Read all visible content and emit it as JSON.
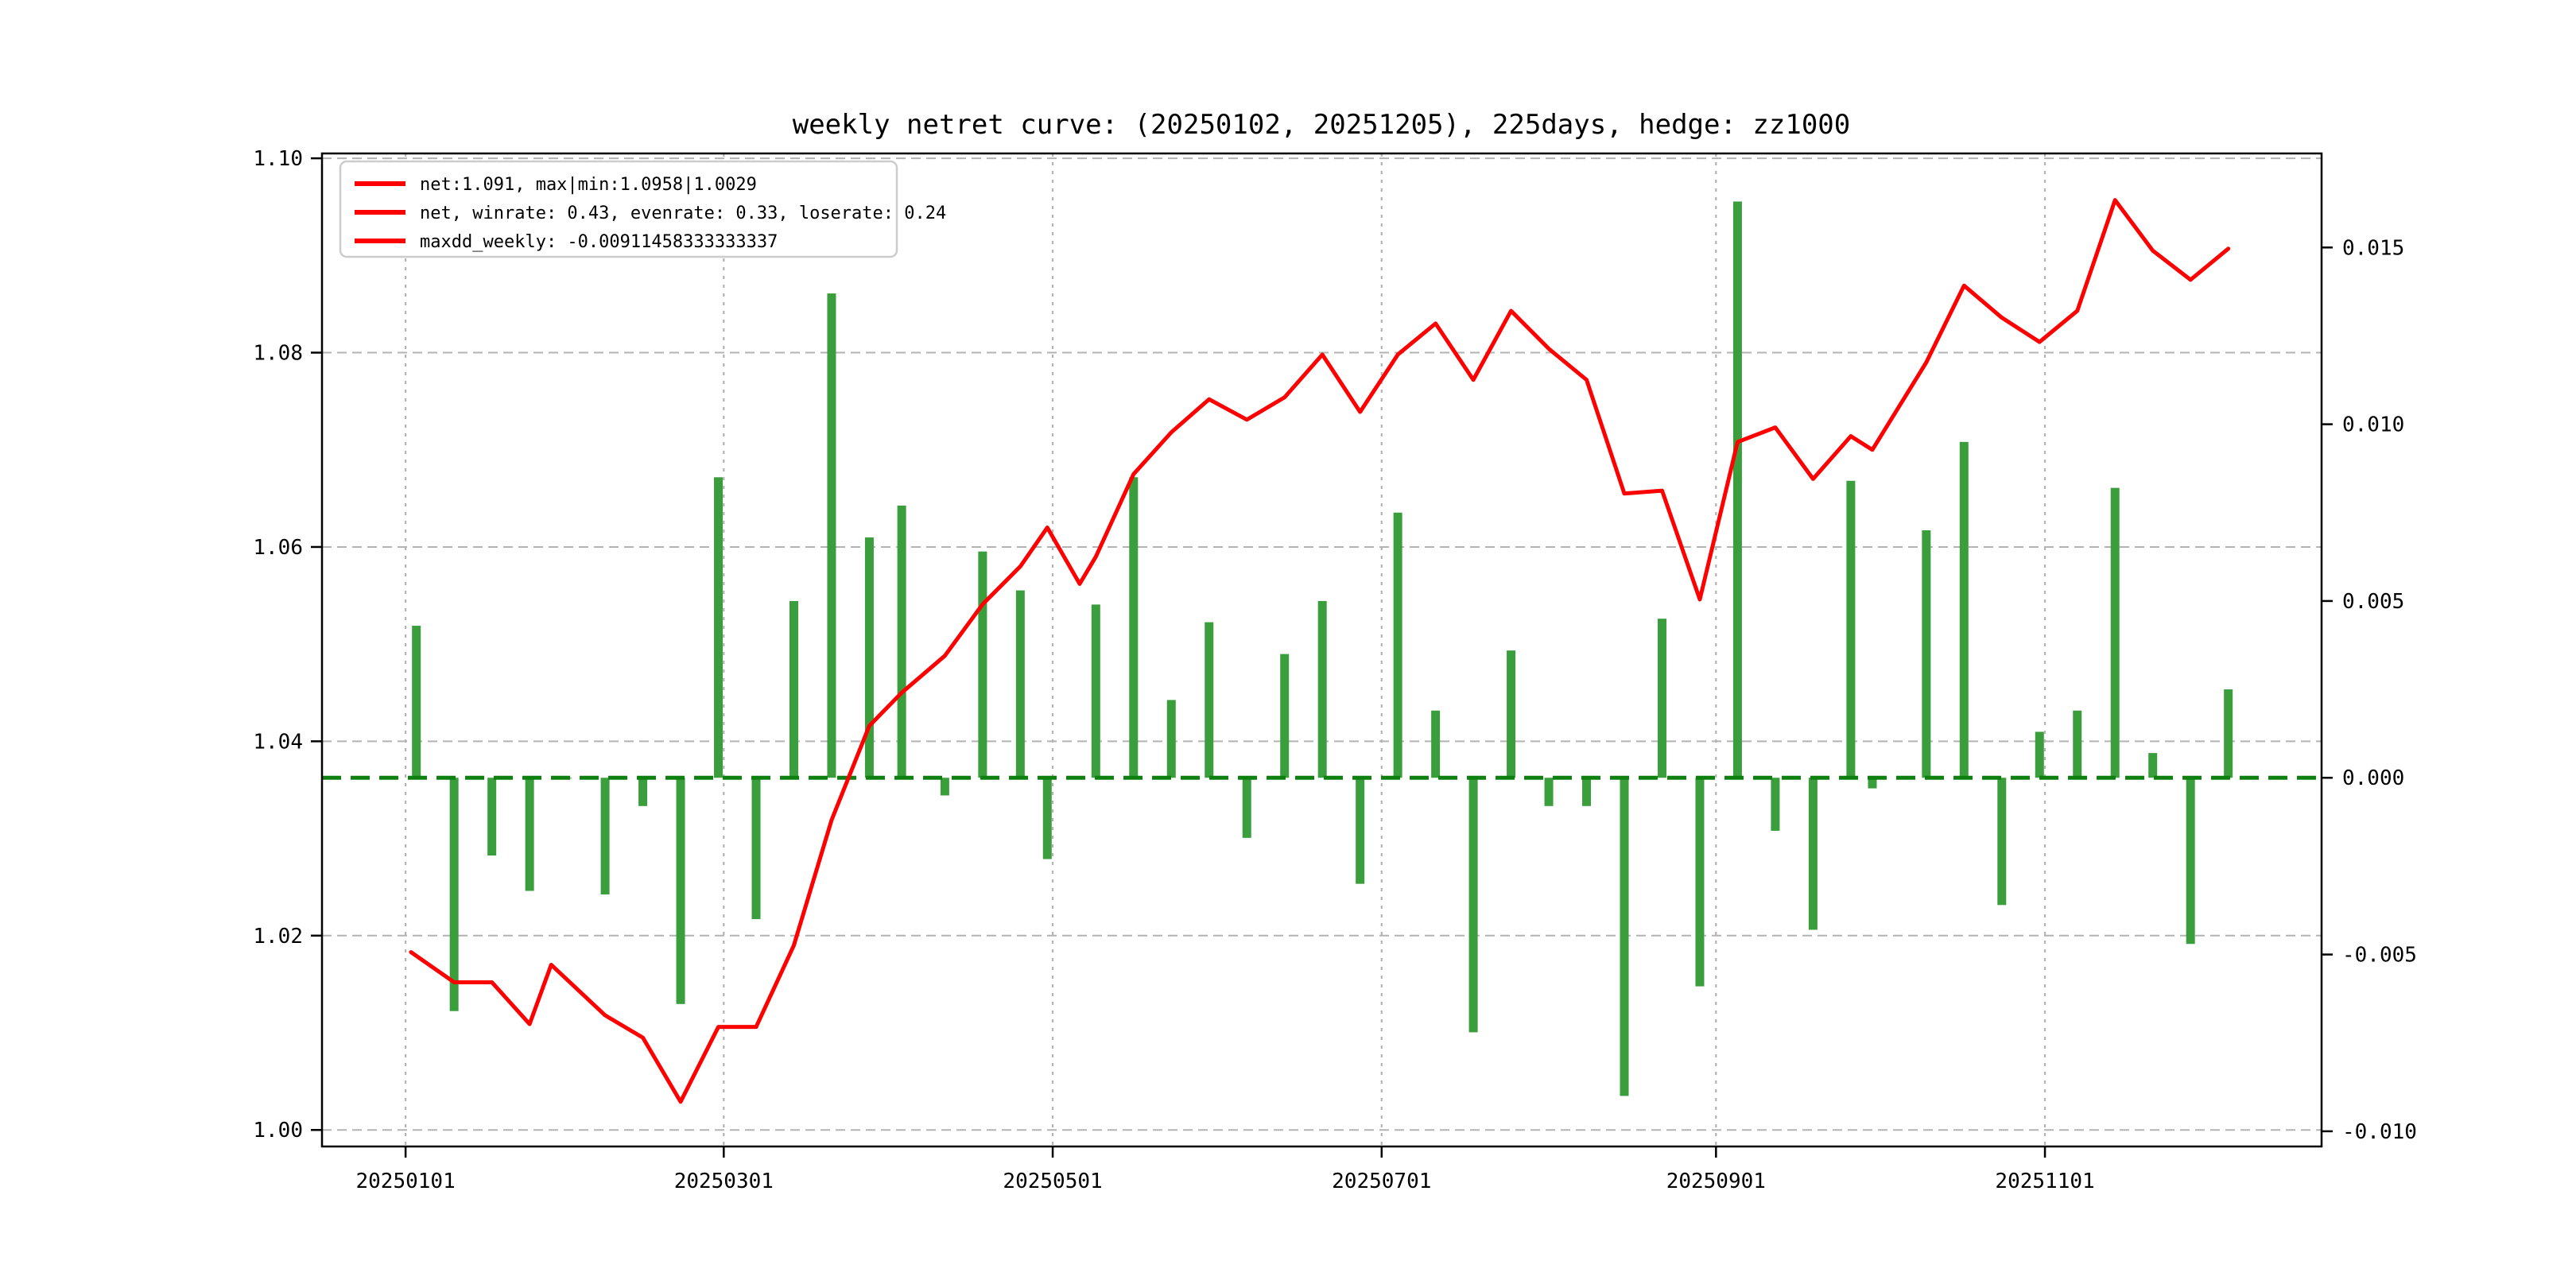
{
  "figure": {
    "title": "weekly netret curve: (20250102, 20251205), 225days, hedge: zz1000",
    "background": "#ffffff"
  },
  "legend": {
    "position": "upper-left",
    "items": [
      {
        "label": "net:1.091, max|min:1.0958|1.0029",
        "color": "#ff0000"
      },
      {
        "label": "net, winrate: 0.43, evenrate: 0.33, loserate: 0.24",
        "color": "#ff0000"
      },
      {
        "label": "maxdd_weekly: -0.00911458333333337",
        "color": "#ff0000"
      }
    ]
  },
  "axes": {
    "x": {
      "tick_labels": [
        "20250101",
        "20250301",
        "20250501",
        "20250701",
        "20250901",
        "20251101"
      ],
      "tick_days": [
        0,
        59,
        120,
        181,
        243,
        304
      ],
      "domain_days": [
        -15.5,
        355.3
      ]
    },
    "left": {
      "tick_labels": [
        "1.00",
        "1.02",
        "1.04",
        "1.06",
        "1.08",
        "1.10"
      ],
      "tick_values": [
        1.0,
        1.02,
        1.04,
        1.06,
        1.08,
        1.1
      ],
      "range": [
        0.9983,
        1.1005
      ]
    },
    "right": {
      "tick_labels": [
        "0.015",
        "0.010",
        "0.005",
        "0.000",
        "-0.005",
        "-0.010"
      ],
      "tick_values": [
        0.015,
        0.01,
        0.005,
        0.0,
        -0.005,
        -0.01
      ],
      "range": [
        -0.01043,
        0.01766
      ]
    }
  },
  "colors": {
    "net_line": "#ff0000",
    "bars": "#3a9e3c",
    "zero_line": "#0e8010",
    "grid": "#b3b3b3",
    "spine": "#000000",
    "text": "#000000",
    "legend_border": "#cccccc"
  },
  "chart_data": {
    "type": "mixed",
    "title": "weekly netret curve: (20250102, 20251205), 225days, hedge: zz1000",
    "grid": true,
    "legend_position": "upper left",
    "x_axis": "dates 20250102..20251205",
    "left_ylim": [
      0.9983,
      1.1005
    ],
    "right_ylim": [
      -0.01043,
      0.01766
    ],
    "baseline_right": 0.0,
    "series": [
      {
        "name": "net",
        "type": "line",
        "axis": "left",
        "color": "#ff0000",
        "points": [
          [
            "20250102",
            1.0183
          ],
          [
            "20250110",
            1.0152
          ],
          [
            "20250117",
            1.0152
          ],
          [
            "20250124",
            1.0109
          ],
          [
            "20250128",
            1.017
          ],
          [
            "20250207",
            1.0118
          ],
          [
            "20250214",
            1.0095
          ],
          [
            "20250221",
            1.0029
          ],
          [
            "20250228",
            1.0106
          ],
          [
            "20250307",
            1.0106
          ],
          [
            "20250314",
            1.019
          ],
          [
            "20250321",
            1.0319
          ],
          [
            "20250328",
            1.0416
          ],
          [
            "20250403",
            1.045
          ],
          [
            "20250411",
            1.0488
          ],
          [
            "20250418",
            1.0541
          ],
          [
            "20250425",
            1.058
          ],
          [
            "20250430",
            1.062
          ],
          [
            "20250506",
            1.0562
          ],
          [
            "20250509",
            1.059
          ],
          [
            "20250516",
            1.0675
          ],
          [
            "20250523",
            1.0718
          ],
          [
            "20250530",
            1.0752
          ],
          [
            "20250606",
            1.0731
          ],
          [
            "20250613",
            1.0754
          ],
          [
            "20250620",
            1.0798
          ],
          [
            "20250627",
            1.0739
          ],
          [
            "20250704",
            1.0798
          ],
          [
            "20250711",
            1.083
          ],
          [
            "20250718",
            1.0772
          ],
          [
            "20250725",
            1.0843
          ],
          [
            "20250801",
            1.0804
          ],
          [
            "20250808",
            1.0772
          ],
          [
            "20250815",
            1.0655
          ],
          [
            "20250822",
            1.0658
          ],
          [
            "20250829",
            1.0546
          ],
          [
            "20250905",
            1.0708
          ],
          [
            "20250912",
            1.0723
          ],
          [
            "20250919",
            1.067
          ],
          [
            "20250926",
            1.0714
          ],
          [
            "20250930",
            1.07
          ],
          [
            "20251010",
            1.079
          ],
          [
            "20251017",
            1.0869
          ],
          [
            "20251024",
            1.0836
          ],
          [
            "20251031",
            1.0811
          ],
          [
            "20251107",
            1.0843
          ],
          [
            "20251114",
            1.0957
          ],
          [
            "20251121",
            1.0905
          ],
          [
            "20251128",
            1.0875
          ],
          [
            "20251205",
            1.0907
          ]
        ]
      },
      {
        "name": "weekly_return",
        "type": "bar",
        "axis": "right",
        "color": "#3a9e3c",
        "points": [
          [
            "20250103",
            0.0043
          ],
          [
            "20250110",
            -0.0066
          ],
          [
            "20250117",
            -0.0022
          ],
          [
            "20250124",
            -0.0032
          ],
          [
            "20250131",
            0.0
          ],
          [
            "20250207",
            -0.0033
          ],
          [
            "20250214",
            -0.0008
          ],
          [
            "20250221",
            -0.0064
          ],
          [
            "20250228",
            0.0085
          ],
          [
            "20250307",
            -0.004
          ],
          [
            "20250314",
            0.005
          ],
          [
            "20250321",
            0.0137
          ],
          [
            "20250328",
            0.0068
          ],
          [
            "20250403",
            0.0077
          ],
          [
            "20250411",
            -0.0005
          ],
          [
            "20250418",
            0.0064
          ],
          [
            "20250425",
            0.0053
          ],
          [
            "20250430",
            -0.0023
          ],
          [
            "20250509",
            0.0049
          ],
          [
            "20250516",
            0.0085
          ],
          [
            "20250523",
            0.0022
          ],
          [
            "20250530",
            0.0044
          ],
          [
            "20250606",
            -0.0017
          ],
          [
            "20250613",
            0.0035
          ],
          [
            "20250620",
            0.005
          ],
          [
            "20250627",
            -0.003
          ],
          [
            "20250704",
            0.0075
          ],
          [
            "20250711",
            0.0019
          ],
          [
            "20250718",
            -0.0072
          ],
          [
            "20250725",
            0.0036
          ],
          [
            "20250801",
            -0.0008
          ],
          [
            "20250808",
            -0.0008
          ],
          [
            "20250815",
            -0.009
          ],
          [
            "20250822",
            0.0045
          ],
          [
            "20250829",
            -0.0059
          ],
          [
            "20250905",
            0.0163
          ],
          [
            "20250912",
            -0.0015
          ],
          [
            "20250919",
            -0.0043
          ],
          [
            "20250926",
            0.0084
          ],
          [
            "20250930",
            -0.0003
          ],
          [
            "20251010",
            0.007
          ],
          [
            "20251017",
            0.0095
          ],
          [
            "20251024",
            -0.0036
          ],
          [
            "20251031",
            0.0013
          ],
          [
            "20251107",
            0.0019
          ],
          [
            "20251114",
            0.0082
          ],
          [
            "20251121",
            0.0007
          ],
          [
            "20251128",
            -0.0047
          ],
          [
            "20251205",
            0.0025
          ]
        ]
      }
    ]
  }
}
